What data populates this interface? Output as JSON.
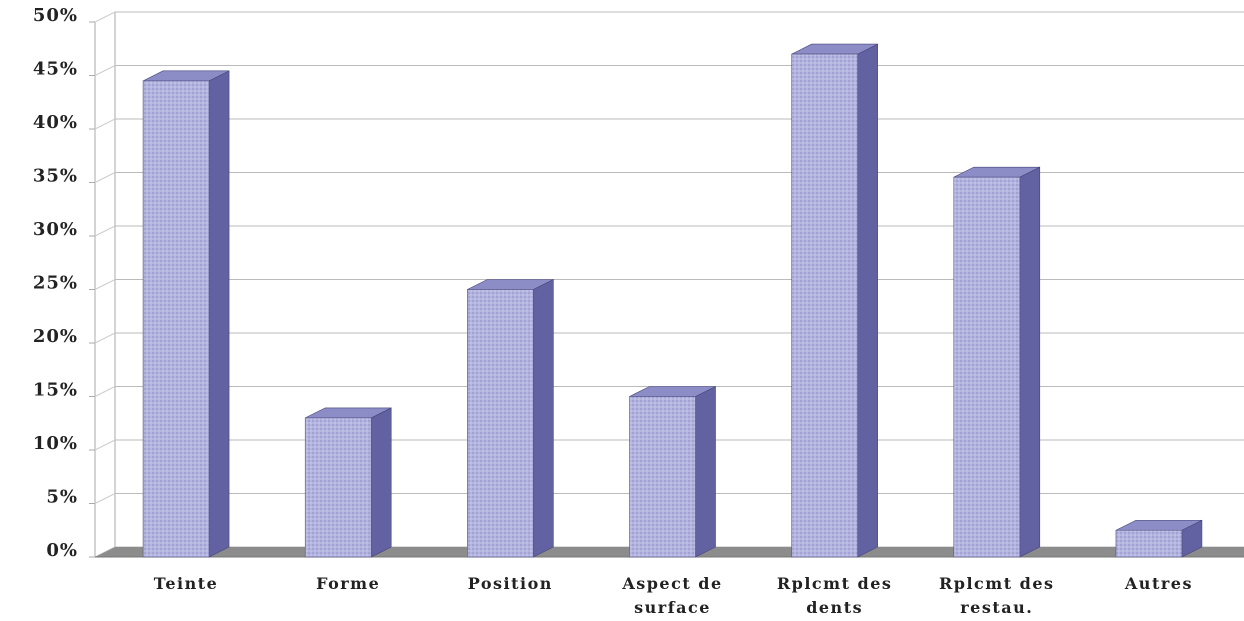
{
  "chart_data": {
    "type": "bar3d",
    "categories": [
      "Teinte",
      "Forme",
      "Position",
      "Aspect de surface",
      "Rplcmt des dents",
      "Rplcmt des restau.",
      "Autres"
    ],
    "values": [
      44.5,
      13,
      25,
      15,
      47,
      35.5,
      2.5
    ],
    "color": "#b4b4e0",
    "ylim": [
      0,
      50
    ],
    "yticks": [
      {
        "value": 0,
        "label": "0%"
      },
      {
        "value": 5,
        "label": "5%"
      },
      {
        "value": 10,
        "label": "10%"
      },
      {
        "value": 15,
        "label": "15%"
      },
      {
        "value": 20,
        "label": "20%"
      },
      {
        "value": 25,
        "label": "25%"
      },
      {
        "value": 30,
        "label": "30%"
      },
      {
        "value": 35,
        "label": "35%"
      },
      {
        "value": 40,
        "label": "40%"
      },
      {
        "value": 45,
        "label": "45%"
      },
      {
        "value": 50,
        "label": "50%"
      }
    ],
    "grid": true
  }
}
